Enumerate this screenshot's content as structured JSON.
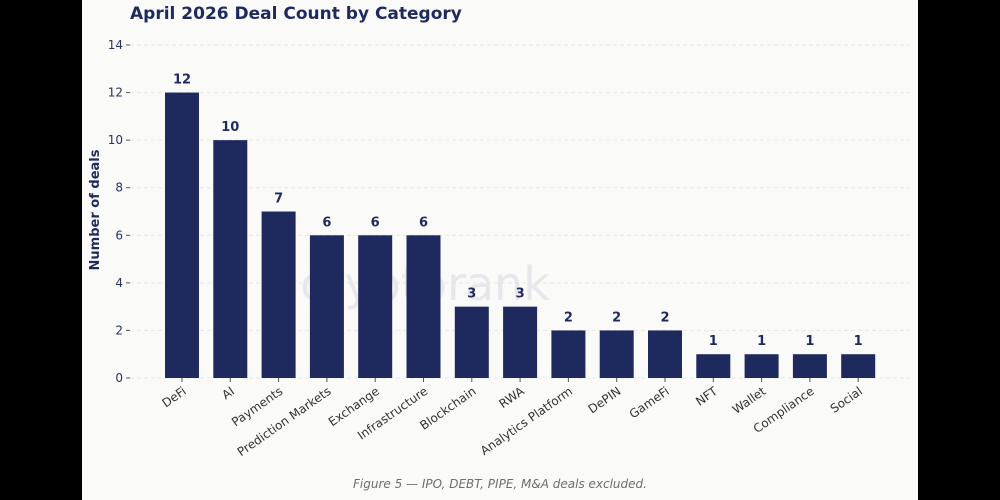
{
  "watermark": "cryptorank",
  "footnote": "Figure 5 — IPO, DEBT, PIPE, M&A deals excluded.",
  "colors": {
    "bar": "#1e2a5e",
    "grid": "#e6e6e6",
    "background": "#fafaf8"
  },
  "chart_data": {
    "type": "bar",
    "title": "April 2026 Deal Count by Category",
    "xlabel": "",
    "ylabel": "Number of deals",
    "ylim": [
      0,
      14
    ],
    "yticks": [
      0,
      2,
      4,
      6,
      8,
      10,
      12,
      14
    ],
    "grid": true,
    "categories": [
      "DeFi",
      "AI",
      "Payments",
      "Prediction Markets",
      "Exchange",
      "Infrastructure",
      "Blockchain",
      "RWA",
      "Analytics Platform",
      "DePIN",
      "GameFi",
      "NFT",
      "Wallet",
      "Compliance",
      "Social"
    ],
    "values": [
      12,
      10,
      7,
      6,
      6,
      6,
      3,
      3,
      2,
      2,
      2,
      1,
      1,
      1,
      1
    ]
  }
}
